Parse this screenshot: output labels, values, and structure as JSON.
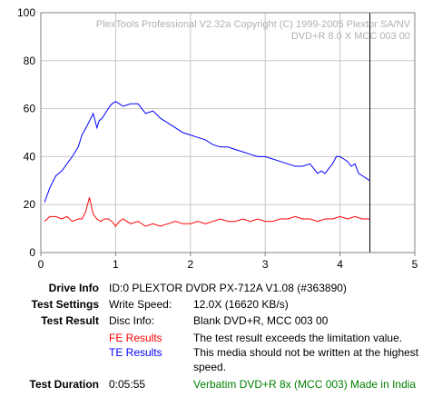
{
  "chart_data": {
    "type": "line",
    "watermark_lines": [
      "PlexTools Professional V2.32a Copyright (C) 1999-2005 Plextor SA/NV",
      "DVD+R    8.0 X    MCC 003 00"
    ],
    "xlim": [
      0,
      5
    ],
    "ylim": [
      0,
      100
    ],
    "x_ticks": [
      0,
      1,
      2,
      3,
      4,
      5
    ],
    "y_ticks": [
      0,
      20,
      40,
      60,
      80,
      100
    ],
    "grid": true,
    "end_marker_x": 4.4,
    "colors": {
      "fe": "#ff0000",
      "te": "#0000ff",
      "grid": "#c8c8c8",
      "marker": "#000000"
    },
    "series": [
      {
        "key": "te",
        "color": "#0000ff",
        "x": [
          0.05,
          0.12,
          0.2,
          0.28,
          0.35,
          0.42,
          0.5,
          0.55,
          0.62,
          0.7,
          0.75,
          0.78,
          0.82,
          0.9,
          0.95,
          1.0,
          1.05,
          1.1,
          1.2,
          1.3,
          1.4,
          1.5,
          1.6,
          1.7,
          1.8,
          1.9,
          2.0,
          2.1,
          2.2,
          2.3,
          2.4,
          2.5,
          2.6,
          2.7,
          2.8,
          2.9,
          3.0,
          3.1,
          3.2,
          3.3,
          3.4,
          3.5,
          3.6,
          3.7,
          3.75,
          3.8,
          3.85,
          3.9,
          3.95,
          4.0,
          4.05,
          4.1,
          4.15,
          4.2,
          4.25,
          4.3,
          4.35,
          4.4
        ],
        "values": [
          21,
          27,
          32,
          34,
          37,
          40,
          44,
          49,
          53,
          58,
          52,
          55,
          56,
          60,
          62,
          63,
          62,
          61,
          62,
          62,
          58,
          59,
          56,
          54,
          52,
          50,
          49,
          48,
          47,
          45,
          44,
          44,
          43,
          42,
          41,
          40,
          40,
          39,
          38,
          37,
          36,
          36,
          37,
          33,
          34,
          33,
          35,
          37,
          40,
          40,
          39,
          38,
          36,
          37,
          33,
          32,
          31,
          30
        ]
      },
      {
        "key": "fe",
        "color": "#ff0000",
        "x": [
          0.05,
          0.12,
          0.2,
          0.28,
          0.35,
          0.42,
          0.5,
          0.55,
          0.6,
          0.65,
          0.7,
          0.75,
          0.8,
          0.85,
          0.9,
          0.95,
          1.0,
          1.05,
          1.1,
          1.2,
          1.3,
          1.4,
          1.5,
          1.6,
          1.7,
          1.8,
          1.9,
          2.0,
          2.1,
          2.2,
          2.3,
          2.4,
          2.5,
          2.6,
          2.7,
          2.8,
          2.9,
          3.0,
          3.1,
          3.2,
          3.3,
          3.4,
          3.5,
          3.6,
          3.7,
          3.8,
          3.9,
          4.0,
          4.1,
          4.2,
          4.3,
          4.4
        ],
        "values": [
          13,
          15,
          15,
          14,
          15,
          13,
          14,
          14,
          17,
          23,
          16,
          14,
          13,
          14,
          14,
          13,
          11,
          13,
          14,
          12,
          13,
          11,
          12,
          11,
          12,
          13,
          12,
          12,
          13,
          12,
          13,
          14,
          13,
          13,
          14,
          13,
          14,
          13,
          13,
          14,
          14,
          15,
          14,
          14,
          13,
          14,
          14,
          15,
          14,
          15,
          14,
          14
        ]
      }
    ]
  },
  "info": {
    "drive_info": {
      "label": "Drive Info",
      "value": "ID:0 PLEXTOR DVDR PX-712A V1.08 (#363890)"
    },
    "test_settings": {
      "label": "Test Settings",
      "key": "Write Speed:",
      "value": "12.0X (16620 KB/s)"
    },
    "test_result": {
      "label": "Test Result",
      "key": "Disc Info:",
      "value": "Blank DVD+R, MCC 003 00"
    },
    "fe_results": {
      "key": "FE Results",
      "value": "The test result exceeds the limitation value."
    },
    "te_results": {
      "key": "TE Results",
      "value": "This media should not be written at the highest speed."
    },
    "test_duration": {
      "label": "Test Duration",
      "key": "0:05:55",
      "value": "Verbatim DVD+R 8x (MCC 003) Made in India"
    }
  }
}
